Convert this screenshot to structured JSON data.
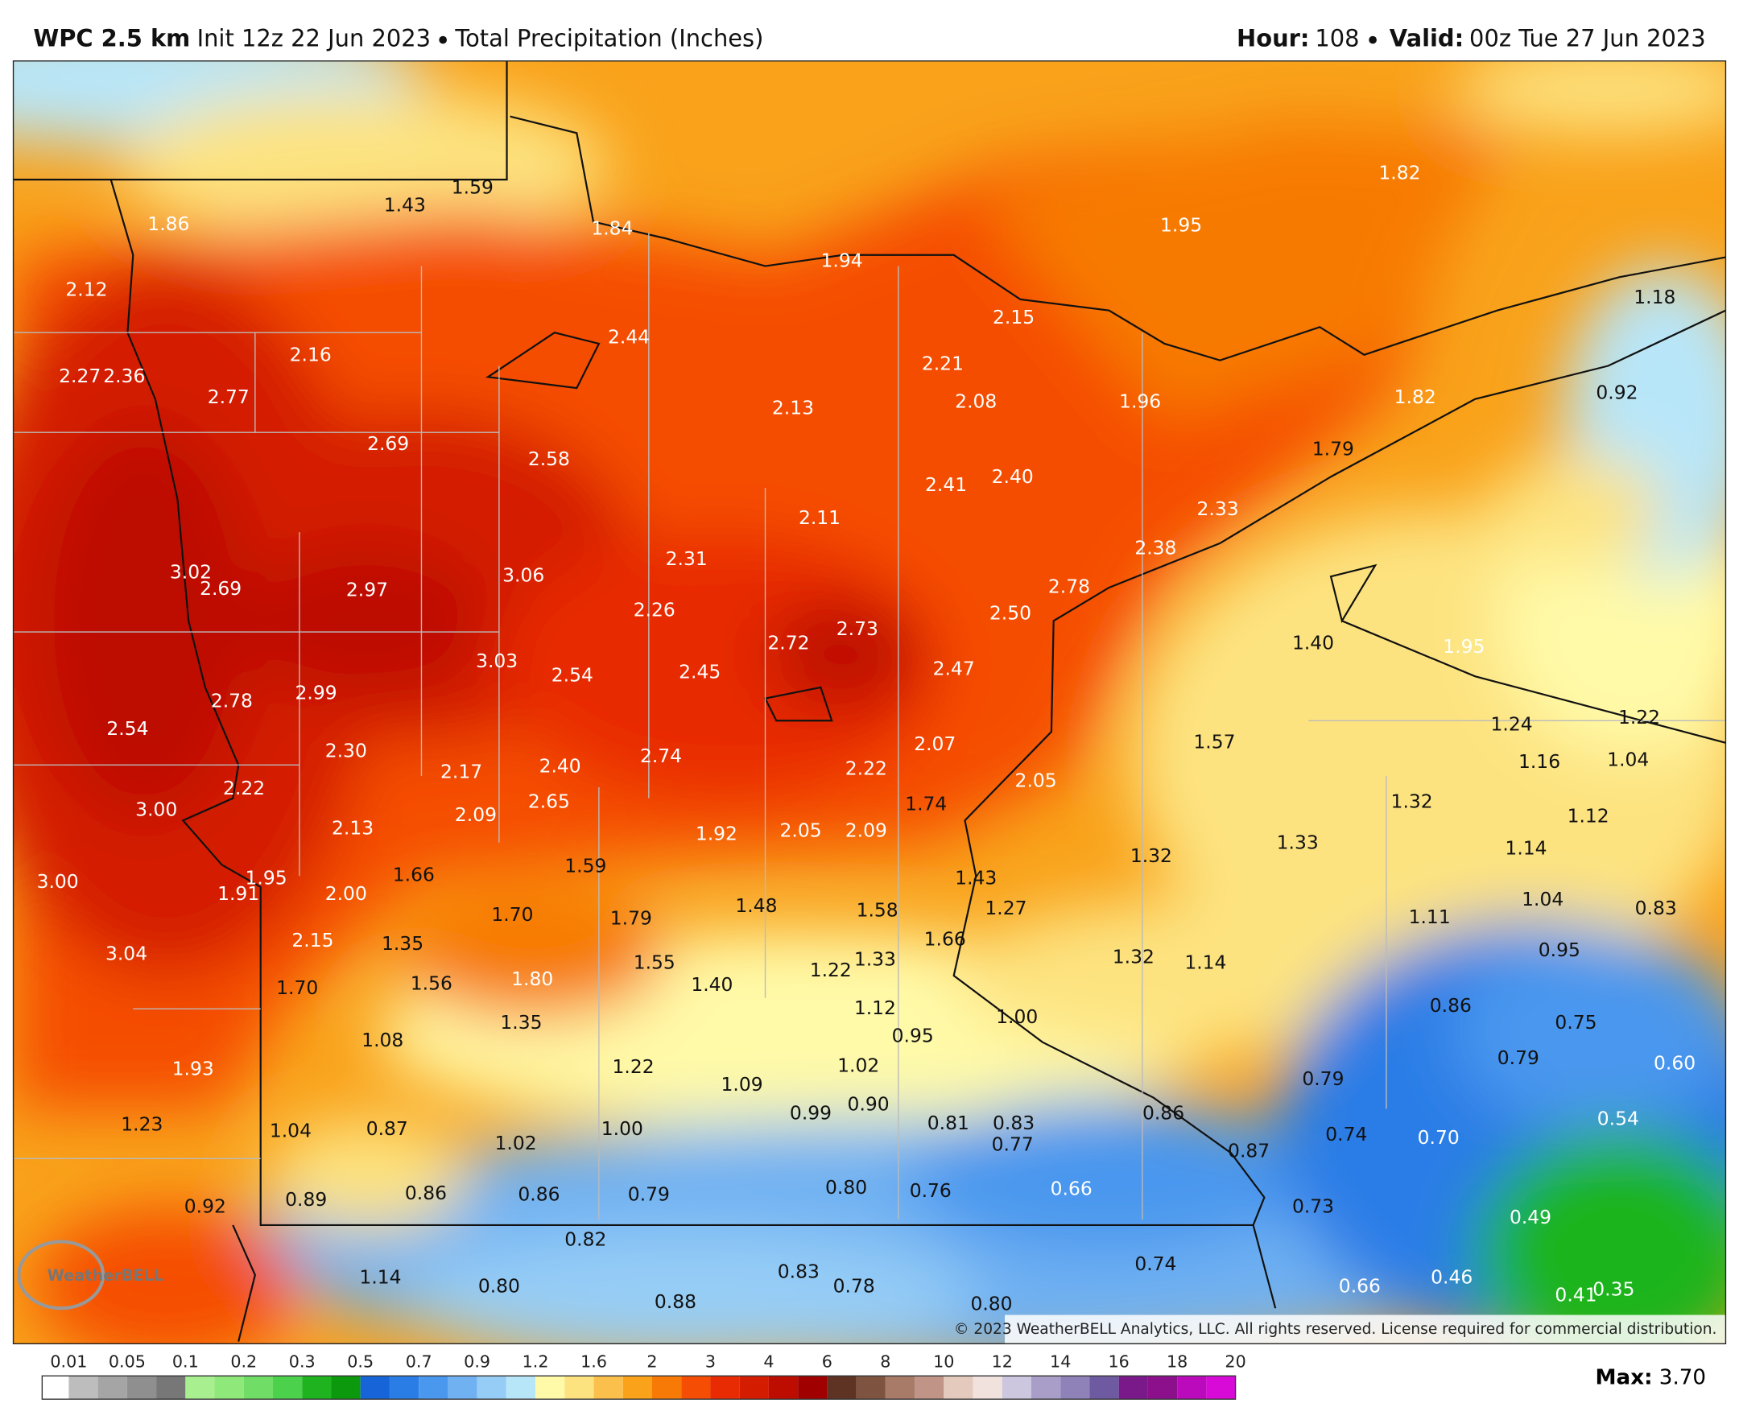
{
  "header": {
    "model": "WPC 2.5 km",
    "init": "Init 12z 22 Jun 2023",
    "product": "Total Precipitation (Inches)",
    "hour_label": "Hour:",
    "hour": "108",
    "valid_label": "Valid:",
    "valid": "00z Tue 27 Jun 2023"
  },
  "map": {
    "logo": "WeatherBELL",
    "copyright": "© 2023 WeatherBELL Analytics, LLC. All rights reserved. License required for commercial distribution.",
    "labels": [
      "1.86",
      "1.43",
      "1.59",
      "1.84",
      "1.94",
      "2.15",
      "1.95",
      "1.82",
      "1.18",
      "2.12",
      "2.16",
      "2.44",
      "2.21",
      "2.08",
      "1.96",
      "1.82",
      "0.92",
      "2.27",
      "2.36",
      "2.77",
      "2.13",
      "2.69",
      "2.58",
      "2.41",
      "2.40",
      "1.79",
      "2.33",
      "2.11",
      "2.38",
      "3.02",
      "2.69",
      "2.97",
      "3.06",
      "2.31",
      "2.78",
      "2.26",
      "2.50",
      "2.73",
      "2.72",
      "1.40",
      "1.95",
      "3.03",
      "2.54",
      "2.45",
      "2.47",
      "2.78",
      "2.99",
      "2.54",
      "1.57",
      "1.24",
      "1.22",
      "2.07",
      "2.30",
      "2.74",
      "2.40",
      "2.17",
      "2.22",
      "1.16",
      "1.04",
      "2.22",
      "2.05",
      "1.74",
      "2.65",
      "1.32",
      "3.00",
      "2.09",
      "2.13",
      "1.12",
      "1.92",
      "2.05",
      "2.09",
      "1.33",
      "1.14",
      "1.32",
      "3.00",
      "1.66",
      "1.59",
      "1.95",
      "1.43",
      "1.91",
      "2.00",
      "1.04",
      "0.83",
      "1.48",
      "1.58",
      "1.27",
      "1.70",
      "1.79",
      "1.11",
      "2.15",
      "1.35",
      "1.66",
      "0.95",
      "3.04",
      "1.32",
      "1.14",
      "1.55",
      "1.33",
      "1.22",
      "1.56",
      "1.80",
      "1.40",
      "1.70",
      "0.86",
      "1.12",
      "1.00",
      "0.75",
      "1.35",
      "1.08",
      "0.95",
      "0.79",
      "0.60",
      "1.93",
      "1.22",
      "1.02",
      "1.09",
      "0.79",
      "0.90",
      "0.99",
      "0.86",
      "0.54",
      "1.23",
      "1.04",
      "0.87",
      "1.00",
      "0.81",
      "0.83",
      "0.74",
      "0.70",
      "1.02",
      "0.77",
      "0.87",
      "0.89",
      "0.86",
      "0.86",
      "0.79",
      "0.80",
      "0.76",
      "0.66",
      "0.73",
      "0.49",
      "0.92",
      "0.82",
      "0.74",
      "0.83",
      "1.14",
      "0.46",
      "0.80",
      "0.78",
      "0.66",
      "0.35",
      "0.41",
      "0.88",
      "0.80"
    ]
  },
  "legend": {
    "ticks": [
      0.01,
      0.05,
      0.1,
      0.2,
      0.3,
      0.5,
      0.7,
      0.9,
      1.2,
      1.6,
      2,
      3,
      4,
      6,
      8,
      10,
      12,
      14,
      16,
      18,
      20
    ],
    "colors": [
      "#ffffff",
      "#bdbdbd",
      "#a5a5a5",
      "#8f8f8f",
      "#777777",
      "#a8f08f",
      "#8fe87a",
      "#6fdd66",
      "#4cd14c",
      "#1fb41f",
      "#0d990d",
      "#1664d8",
      "#2b7de6",
      "#4a97ee",
      "#70b1f2",
      "#96cdf6",
      "#b8e6f9",
      "#fffaa8",
      "#fde380",
      "#fbc04c",
      "#f9a21a",
      "#f77a06",
      "#f54d04",
      "#e82b02",
      "#d41c00",
      "#bd0c00",
      "#a00000",
      "#5e3323",
      "#7e5440",
      "#a87a68",
      "#c09486",
      "#e4cabc",
      "#f1e2de",
      "#ccc6de",
      "#a99ec8",
      "#8e82b8",
      "#6d5aa0",
      "#7a1a8a",
      "#8c108c",
      "#bb0abb",
      "#d80ad8"
    ],
    "max_label": "Max:",
    "max_value": "3.70"
  }
}
